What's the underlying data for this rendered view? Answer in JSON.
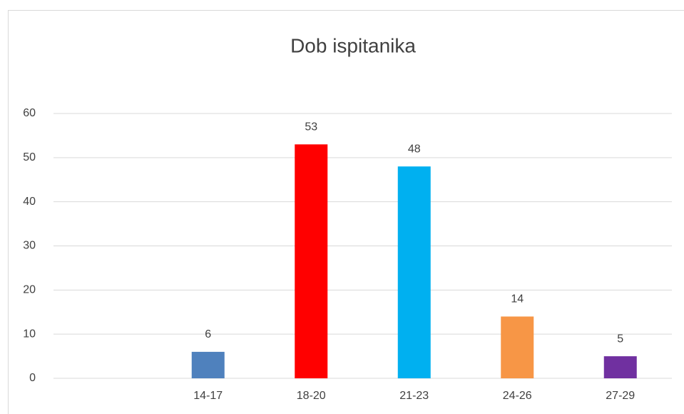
{
  "chart_data": {
    "type": "bar",
    "title": "Dob ispitanika",
    "categories": [
      null,
      "14-17",
      "18-20",
      "21-23",
      "24-26",
      "27-29"
    ],
    "values": [
      null,
      6,
      53,
      48,
      14,
      5
    ],
    "colors": [
      null,
      "#4f81bd",
      "#ff0000",
      "#00b0f0",
      "#f79646",
      "#7030a0"
    ],
    "ylim": [
      0,
      60
    ],
    "yticks": [
      0,
      10,
      20,
      30,
      40,
      50,
      60
    ],
    "grid": true
  }
}
